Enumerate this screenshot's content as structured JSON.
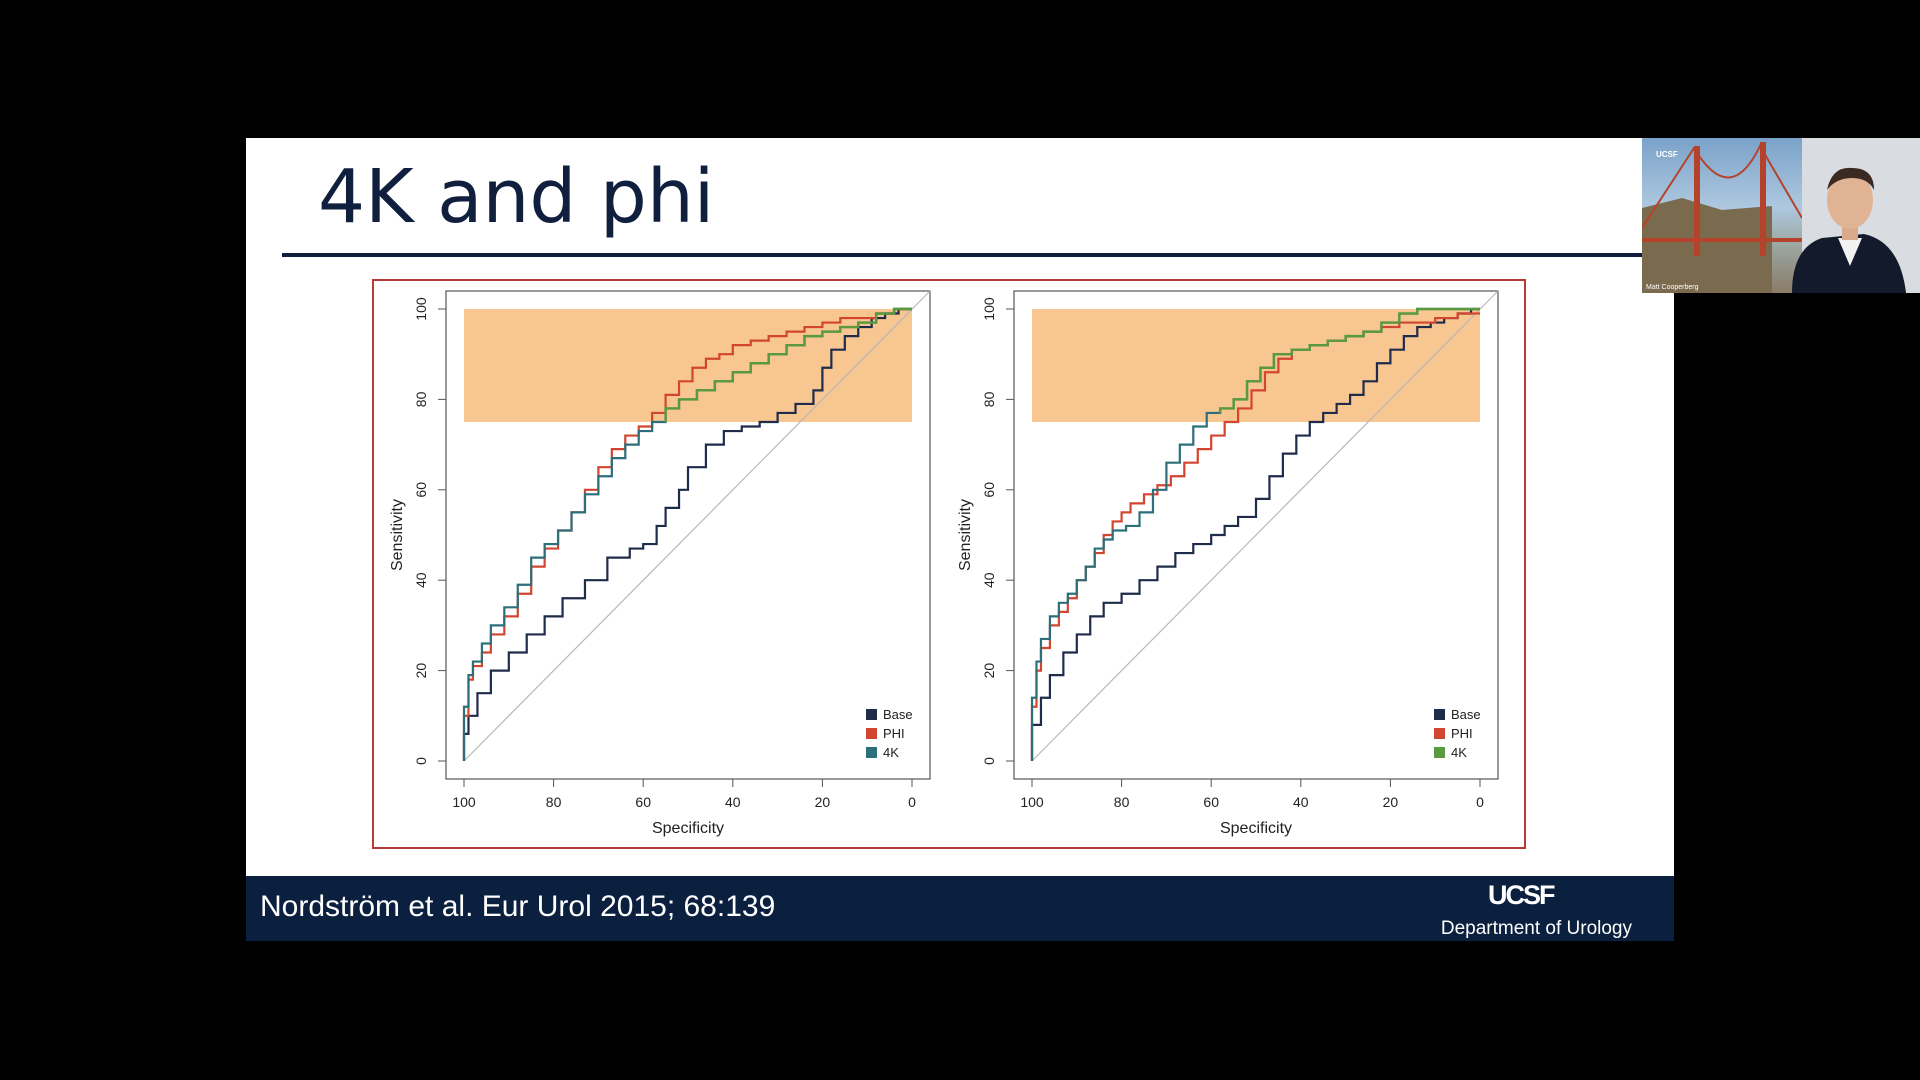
{
  "slide": {
    "title": "4K and phi",
    "citation": "Nordström et al. Eur Urol 2015; 68:139",
    "footer_logo": "UCSF",
    "footer_dept": "Department of Urology"
  },
  "video": {
    "speaker_name": "Matt Cooperberg",
    "logo_text": "UCSF"
  },
  "colors": {
    "navy": "#0f1f3d",
    "footer_bg": "#0b1f3e",
    "frame_red": "#b53a3a",
    "highlight_band": "#f8c38a",
    "base": "#1f2b4a",
    "phi": "#d2452e",
    "fourk_left": "#2c6f7a",
    "fourk_right": "#5a9a3e",
    "diagonal": "#b8b8b8"
  },
  "chart_data": [
    {
      "type": "line",
      "xlabel": "Specificity",
      "ylabel": "Sensitivity",
      "xlim": [
        100,
        0
      ],
      "ylim": [
        0,
        100
      ],
      "xticks": [
        "100",
        "80",
        "60",
        "40",
        "20",
        "0"
      ],
      "yticks": [
        "0",
        "20",
        "40",
        "60",
        "80",
        "100"
      ],
      "highlight_band": {
        "x": [
          100,
          0
        ],
        "y": [
          75,
          100
        ]
      },
      "reference_line": {
        "x": [
          100,
          0
        ],
        "y": [
          0,
          100
        ]
      },
      "legend_position": "bottom-right",
      "series": [
        {
          "name": "Base",
          "color": "#1f2b4a",
          "x": [
            100,
            99,
            97,
            94,
            90,
            86,
            82,
            78,
            73,
            68,
            63,
            60,
            57,
            55,
            52,
            50,
            46,
            42,
            38,
            34,
            30,
            26,
            22,
            20,
            18,
            15,
            12,
            9,
            6,
            3,
            0
          ],
          "y": [
            0,
            6,
            10,
            15,
            20,
            24,
            28,
            32,
            36,
            40,
            45,
            47,
            48,
            52,
            56,
            60,
            65,
            70,
            73,
            74,
            75,
            77,
            79,
            82,
            87,
            91,
            94,
            96,
            98,
            99,
            100
          ]
        },
        {
          "name": "PHI",
          "color": "#d2452e",
          "x": [
            100,
            99,
            98,
            96,
            94,
            91,
            88,
            85,
            82,
            79,
            76,
            73,
            70,
            67,
            64,
            61,
            58,
            55,
            52,
            49,
            46,
            43,
            40,
            36,
            32,
            28,
            24,
            20,
            16,
            12,
            8,
            4,
            0
          ],
          "y": [
            0,
            10,
            18,
            21,
            24,
            28,
            32,
            37,
            43,
            47,
            51,
            55,
            60,
            65,
            69,
            72,
            74,
            77,
            81,
            84,
            87,
            89,
            90,
            92,
            93,
            94,
            95,
            96,
            97,
            98,
            98,
            99,
            100
          ]
        },
        {
          "name": "4K",
          "color": "#2c6f7a",
          "x": [
            100,
            99,
            98,
            96,
            94,
            91,
            88,
            85,
            82,
            79,
            76,
            73,
            70,
            67,
            64,
            61,
            58,
            55,
            52,
            48,
            44,
            40,
            36,
            32,
            28,
            24,
            20,
            16,
            12,
            8,
            4,
            0
          ],
          "y": [
            0,
            12,
            19,
            22,
            26,
            30,
            34,
            39,
            45,
            48,
            51,
            55,
            59,
            63,
            67,
            70,
            73,
            75,
            78,
            80,
            82,
            84,
            86,
            88,
            90,
            92,
            94,
            95,
            96,
            97,
            99,
            100
          ],
          "overlay_color": "#5a9a3e",
          "overlay_from_y": 75
        }
      ]
    },
    {
      "type": "line",
      "xlabel": "Specificity",
      "ylabel": "Sensitivity",
      "xlim": [
        100,
        0
      ],
      "ylim": [
        0,
        100
      ],
      "xticks": [
        "100",
        "80",
        "60",
        "40",
        "20",
        "0"
      ],
      "yticks": [
        "0",
        "20",
        "40",
        "60",
        "80",
        "100"
      ],
      "highlight_band": {
        "x": [
          100,
          0
        ],
        "y": [
          75,
          100
        ]
      },
      "reference_line": {
        "x": [
          100,
          0
        ],
        "y": [
          0,
          100
        ]
      },
      "legend_position": "bottom-right",
      "series": [
        {
          "name": "Base",
          "color": "#1f2b4a",
          "x": [
            100,
            98,
            96,
            93,
            90,
            87,
            84,
            80,
            76,
            72,
            68,
            64,
            60,
            57,
            54,
            50,
            47,
            44,
            41,
            38,
            35,
            32,
            29,
            26,
            23,
            20,
            17,
            14,
            11,
            8,
            5,
            2,
            0
          ],
          "y": [
            0,
            8,
            14,
            19,
            24,
            28,
            32,
            35,
            37,
            40,
            43,
            46,
            48,
            50,
            52,
            54,
            58,
            63,
            68,
            72,
            75,
            77,
            79,
            81,
            84,
            88,
            91,
            94,
            96,
            97,
            98,
            99,
            100
          ]
        },
        {
          "name": "PHI",
          "color": "#d2452e",
          "x": [
            100,
            99,
            98,
            96,
            94,
            92,
            90,
            88,
            86,
            84,
            82,
            80,
            78,
            75,
            72,
            69,
            66,
            63,
            60,
            57,
            54,
            51,
            48,
            45,
            42,
            38,
            34,
            30,
            26,
            22,
            18,
            14,
            10,
            5,
            0
          ],
          "y": [
            0,
            12,
            20,
            25,
            30,
            33,
            36,
            40,
            43,
            46,
            50,
            53,
            55,
            57,
            59,
            61,
            63,
            66,
            69,
            72,
            75,
            78,
            82,
            86,
            89,
            91,
            92,
            93,
            94,
            95,
            96,
            97,
            97,
            98,
            99
          ]
        },
        {
          "name": "4K",
          "color": "#2c6f7a",
          "x": [
            100,
            99,
            98,
            96,
            94,
            92,
            90,
            88,
            86,
            84,
            82,
            79,
            76,
            73,
            70,
            67,
            64,
            61,
            58,
            55,
            52,
            49,
            46,
            42,
            38,
            34,
            30,
            26,
            22,
            18,
            14,
            10,
            6,
            3,
            0
          ],
          "y": [
            0,
            14,
            22,
            27,
            32,
            35,
            37,
            40,
            43,
            47,
            49,
            51,
            52,
            55,
            60,
            66,
            70,
            74,
            77,
            78,
            80,
            84,
            87,
            90,
            91,
            92,
            93,
            94,
            95,
            97,
            99,
            100,
            100,
            100,
            100
          ],
          "overlay_color": "#5a9a3e",
          "overlay_from_y": 75,
          "legend_color": "#5a9a3e"
        }
      ]
    }
  ]
}
